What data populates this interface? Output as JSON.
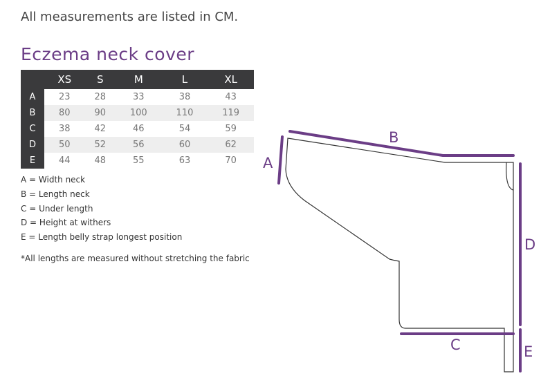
{
  "intro": "All measurements are listed in CM.",
  "title": "Eczema neck cover",
  "table": {
    "headers": [
      "",
      "XS",
      "S",
      "M",
      "L",
      "XL"
    ],
    "rows": [
      [
        "A",
        "23",
        "28",
        "33",
        "38",
        "43"
      ],
      [
        "B",
        "80",
        "90",
        "100",
        "110",
        "119"
      ],
      [
        "C",
        "38",
        "42",
        "46",
        "54",
        "59"
      ],
      [
        "D",
        "50",
        "52",
        "56",
        "60",
        "62"
      ],
      [
        "E",
        "44",
        "48",
        "55",
        "63",
        "70"
      ]
    ]
  },
  "legend": [
    "A = Width neck",
    "B = Length neck",
    "C = Under length",
    "D = Height at withers",
    "E = Length belly strap longest position"
  ],
  "note": "*All lengths are measured without stretching the fabric",
  "diagram": {
    "labels": {
      "a": "A",
      "b": "B",
      "c": "C",
      "d": "D",
      "e": "E"
    },
    "accent": "#6b3d86",
    "outline": "#333333"
  }
}
